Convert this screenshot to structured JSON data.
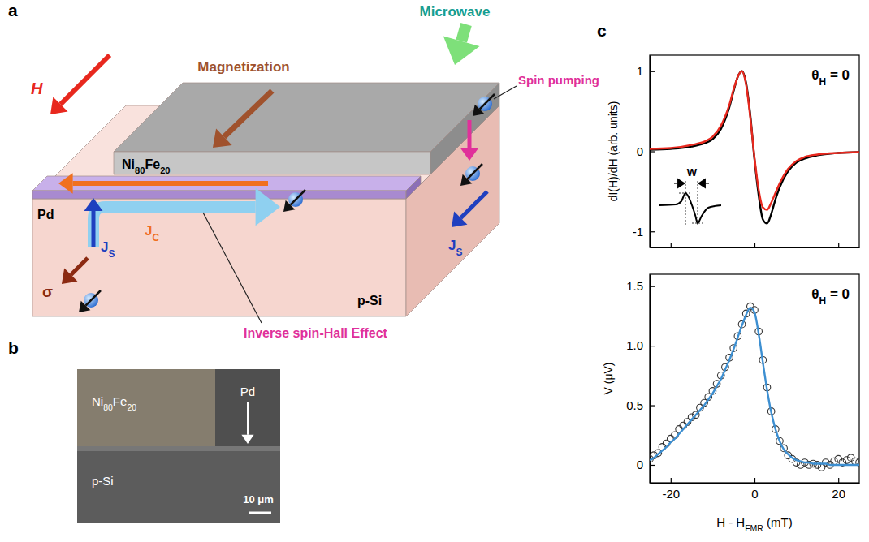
{
  "panel_labels": [
    "a",
    "b",
    "c"
  ],
  "diagram": {
    "labels": {
      "microwave": "Microwave",
      "magnetization": "Magnetization",
      "field": "H",
      "spin_pumping": "Spin pumping",
      "ferromagnet": [
        {
          "text": "Ni",
          "sub": "80"
        },
        {
          "text": "Fe",
          "sub": "20"
        }
      ],
      "metal": "Pd",
      "charge_current": [
        {
          "text": "J",
          "sub": "C"
        }
      ],
      "spin_current_vertical": [
        {
          "text": "J",
          "sub": "S"
        }
      ],
      "spin_current_lateral": [
        {
          "text": "J",
          "sub": "S"
        }
      ],
      "polarization": "σ",
      "substrate": "p-Si",
      "ishe": "Inverse spin-Hall Effect"
    }
  },
  "micrograph": {
    "labels": {
      "ferromagnet": [
        {
          "text": "Ni",
          "sub": "80"
        },
        {
          "text": "Fe",
          "sub": "20"
        }
      ],
      "metal": "Pd",
      "substrate": "p-Si",
      "scale_bar": "10 μm"
    }
  },
  "chart_data": [
    {
      "type": "line",
      "y_label": "dI(H)/dH (arb. units)",
      "annotation": [
        {
          "text": "θ",
          "sub": "H"
        },
        {
          "text": " = 0"
        }
      ],
      "inset_label": "W",
      "x": [
        -25,
        -20,
        -15,
        -12,
        -10,
        -8,
        -6,
        -5,
        -4,
        -3,
        -2,
        -1,
        0,
        1,
        2,
        3,
        4,
        5,
        6,
        8,
        10,
        12,
        15,
        20,
        25
      ],
      "series": [
        {
          "color": "#000000",
          "values": [
            0.02,
            0.03,
            0.06,
            0.1,
            0.15,
            0.28,
            0.55,
            0.75,
            0.93,
            1.0,
            0.85,
            0.45,
            -0.1,
            -0.55,
            -0.85,
            -0.9,
            -0.78,
            -0.6,
            -0.45,
            -0.25,
            -0.14,
            -0.09,
            -0.05,
            -0.02,
            -0.01
          ]
        },
        {
          "color": "#e8281e",
          "values": [
            0.03,
            0.04,
            0.08,
            0.12,
            0.18,
            0.32,
            0.58,
            0.77,
            0.93,
            1.0,
            0.83,
            0.42,
            -0.08,
            -0.48,
            -0.7,
            -0.73,
            -0.64,
            -0.52,
            -0.4,
            -0.22,
            -0.12,
            -0.07,
            -0.04,
            -0.02,
            -0.01
          ]
        }
      ],
      "xlim": [
        -25,
        25
      ],
      "xticks": [
        -20,
        0,
        20
      ],
      "ylim": [
        -1.2,
        1.2
      ],
      "yticks": [
        -1,
        0,
        1
      ],
      "tick_labels": "y"
    },
    {
      "type": "scatter",
      "y_label": "V (μV)",
      "x_label": [
        {
          "text": "H - H",
          "sub": "FMR"
        },
        {
          "text": " (mT)"
        }
      ],
      "annotation": [
        {
          "text": "θ",
          "sub": "H"
        },
        {
          "text": " = 0"
        }
      ],
      "x": [
        -25,
        -24,
        -23,
        -22,
        -21,
        -20,
        -19,
        -18,
        -17,
        -16,
        -15,
        -14,
        -13,
        -12,
        -11,
        -10,
        -9,
        -8,
        -7,
        -6,
        -5,
        -4,
        -3,
        -2,
        -1,
        0,
        1,
        2,
        3,
        4,
        5,
        6,
        7,
        8,
        9,
        10,
        11,
        12,
        13,
        14,
        15,
        16,
        17,
        18,
        19,
        20,
        21,
        22,
        23,
        24,
        25
      ],
      "series": [
        {
          "type": "scatter",
          "color": "#333333",
          "marker": "open-circle",
          "values": [
            0.05,
            0.08,
            0.1,
            0.15,
            0.18,
            0.22,
            0.25,
            0.3,
            0.33,
            0.36,
            0.4,
            0.42,
            0.48,
            0.52,
            0.57,
            0.62,
            0.68,
            0.75,
            0.82,
            0.9,
            0.98,
            1.08,
            1.18,
            1.27,
            1.33,
            1.3,
            1.12,
            0.88,
            0.65,
            0.45,
            0.3,
            0.2,
            0.14,
            0.08,
            0.05,
            0.02,
            0.0,
            0.02,
            0.0,
            0.01,
            0.0,
            -0.02,
            0.02,
            0.0,
            0.03,
            0.05,
            0.02,
            0.04,
            0.06,
            0.03,
            0.02
          ]
        },
        {
          "type": "line",
          "color": "#3d8fd1",
          "values": [
            0.04,
            0.06,
            0.09,
            0.12,
            0.15,
            0.19,
            0.22,
            0.26,
            0.3,
            0.34,
            0.38,
            0.42,
            0.46,
            0.5,
            0.55,
            0.6,
            0.66,
            0.72,
            0.8,
            0.88,
            0.97,
            1.07,
            1.17,
            1.26,
            1.32,
            1.28,
            1.1,
            0.86,
            0.63,
            0.44,
            0.3,
            0.2,
            0.13,
            0.09,
            0.06,
            0.04,
            0.03,
            0.02,
            0.02,
            0.01,
            0.01,
            0.01,
            0.01,
            0.0,
            0.0,
            0.0,
            0.0,
            0.0,
            0.0,
            0.0,
            0.0
          ]
        }
      ],
      "xlim": [
        -25,
        25
      ],
      "xticks": [
        -20,
        0,
        20
      ],
      "ylim": [
        -0.15,
        1.6
      ],
      "yticks": [
        0,
        0.5,
        {
          "value": 1,
          "label": "1.0"
        },
        1.5
      ]
    }
  ]
}
